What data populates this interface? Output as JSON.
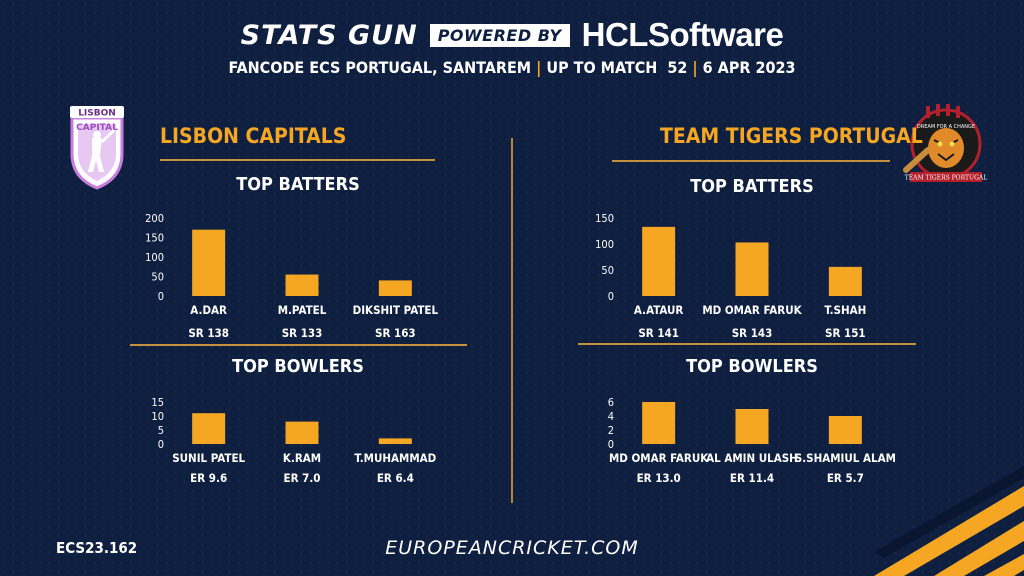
{
  "header": {
    "brand_left": "STATS GUN",
    "brand_badge": "POWERED BY",
    "brand_right": "HCLSoftware",
    "event": "FANCODE ECS PORTUGAL, SANTAREM",
    "match": "UP TO MATCH  52",
    "date": "6 APR 2023"
  },
  "colors": {
    "background": "#0f1f40",
    "accent": "#f5a623",
    "bar": "#f5a623",
    "divider": "#c4913e"
  },
  "teams": [
    {
      "name": "LISBON CAPITALS",
      "logo_text": "LISBON CAPITAL",
      "logo_icon": "lisbon-capitals-logo"
    },
    {
      "name": "TEAM TIGERS PORTUGAL",
      "logo_text": "TEAM TIGERS PORTUGAL",
      "logo_tagline": "DREAM FOR A CHANGE",
      "logo_icon": "tiger-logo"
    }
  ],
  "sections": {
    "batters": "TOP BATTERS",
    "bowlers": "TOP BOWLERS"
  },
  "chart_data": [
    {
      "type": "bar",
      "team": "LISBON CAPITALS",
      "title": "TOP BATTERS",
      "categories": [
        "A.DAR",
        "M.PATEL",
        "DIKSHIT PATEL"
      ],
      "values": [
        170,
        55,
        40
      ],
      "sublabels": [
        "SR 138",
        "SR 133",
        "SR 163"
      ],
      "yticks": [
        0,
        50,
        100,
        150,
        200
      ],
      "ylim": [
        0,
        200
      ],
      "grid": false
    },
    {
      "type": "bar",
      "team": "TEAM TIGERS PORTUGAL",
      "title": "TOP BATTERS",
      "categories": [
        "A.ATAUR",
        "MD OMAR FARUK",
        "T.SHAH"
      ],
      "values": [
        133,
        103,
        56
      ],
      "sublabels": [
        "SR 141",
        "SR 143",
        "SR 151"
      ],
      "yticks": [
        0,
        50,
        100,
        150
      ],
      "ylim": [
        0,
        150
      ],
      "grid": false
    },
    {
      "type": "bar",
      "team": "LISBON CAPITALS",
      "title": "TOP BOWLERS",
      "categories": [
        "SUNIL PATEL",
        "K.RAM",
        "T.MUHAMMAD"
      ],
      "values": [
        11,
        8,
        2
      ],
      "sublabels": [
        "ER 9.6",
        "ER 7.0",
        "ER 6.4"
      ],
      "yticks": [
        0,
        5,
        10,
        15
      ],
      "ylim": [
        0,
        15
      ],
      "grid": false
    },
    {
      "type": "bar",
      "team": "TEAM TIGERS PORTUGAL",
      "title": "TOP BOWLERS",
      "categories": [
        "MD OMAR FARUK",
        "AL AMIN ULASH",
        "S.SHAMIUL ALAM"
      ],
      "values": [
        6,
        5,
        4
      ],
      "sublabels": [
        "ER 13.0",
        "ER 11.4",
        "ER 5.7"
      ],
      "yticks": [
        0,
        2,
        4,
        6
      ],
      "ylim": [
        0,
        6
      ],
      "grid": false
    }
  ],
  "footer": {
    "code": "ECS23.162",
    "website": "EUROPEANCRICKET.COM"
  }
}
